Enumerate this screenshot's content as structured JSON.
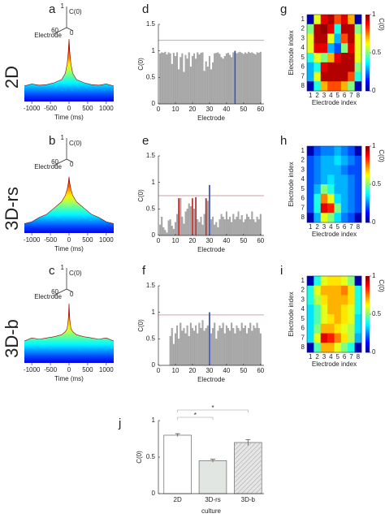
{
  "chart_data": [
    {
      "type": "waterfall",
      "panel": "a",
      "row_label": "2D",
      "inset": {
        "zticks": [
          0,
          1
        ],
        "zlabel": "C(0)",
        "depth_tick": 60,
        "depth_label": "Electrode"
      },
      "x": [
        -1200,
        -1000,
        -800,
        -600,
        -400,
        -200,
        -100,
        -50,
        -20,
        0,
        20,
        50,
        100,
        200,
        400,
        600,
        800,
        1000,
        1200
      ],
      "values": [
        0.25,
        0.28,
        0.26,
        0.27,
        0.3,
        0.35,
        0.45,
        0.6,
        0.8,
        1.0,
        0.8,
        0.6,
        0.45,
        0.35,
        0.3,
        0.27,
        0.26,
        0.28,
        0.25
      ],
      "zlim": [
        0,
        1
      ],
      "xlim": [
        -1200,
        1200
      ],
      "xticks": [
        -1000,
        -500,
        0,
        500,
        1000
      ],
      "xlabel": "Time (ms)"
    },
    {
      "type": "waterfall",
      "panel": "b",
      "row_label": "3D-rs",
      "inset": {
        "zticks": [
          0,
          1
        ],
        "zlabel": "C(0)",
        "depth_tick": 60,
        "depth_label": "Electrode"
      },
      "x": [
        -1200,
        -1000,
        -800,
        -600,
        -400,
        -200,
        -100,
        -50,
        -20,
        0,
        20,
        50,
        100,
        200,
        400,
        600,
        800,
        1000,
        1200
      ],
      "values": [
        0.15,
        0.18,
        0.25,
        0.3,
        0.4,
        0.5,
        0.6,
        0.7,
        0.8,
        0.9,
        0.8,
        0.7,
        0.6,
        0.5,
        0.4,
        0.3,
        0.25,
        0.18,
        0.15
      ],
      "zlim": [
        0,
        1
      ],
      "xlim": [
        -1200,
        1200
      ],
      "xticks": [
        -1000,
        -500,
        0,
        500,
        1000
      ],
      "xlabel": "Time (ms)"
    },
    {
      "type": "waterfall",
      "panel": "c",
      "row_label": "3D-b",
      "inset": {
        "zticks": [
          0,
          1
        ],
        "zlabel": "C(0)",
        "depth_tick": 60,
        "depth_label": "Electrode"
      },
      "x": [
        -1200,
        -1000,
        -800,
        -600,
        -400,
        -200,
        -100,
        -50,
        -20,
        0,
        20,
        50,
        100,
        200,
        400,
        600,
        800,
        1000,
        1200
      ],
      "values": [
        0.35,
        0.4,
        0.38,
        0.4,
        0.42,
        0.45,
        0.5,
        0.55,
        0.7,
        0.95,
        0.7,
        0.55,
        0.5,
        0.45,
        0.42,
        0.4,
        0.38,
        0.4,
        0.35
      ],
      "zlim": [
        0,
        1
      ],
      "xlim": [
        -1200,
        1200
      ],
      "xticks": [
        -1000,
        -500,
        0,
        500,
        1000
      ],
      "xlabel": "Time (ms)"
    },
    {
      "type": "bar",
      "panel": "d",
      "color": "#a8a8a8",
      "x": [
        1,
        2,
        3,
        4,
        5,
        6,
        7,
        8,
        9,
        10,
        11,
        12,
        13,
        14,
        15,
        16,
        17,
        18,
        19,
        20,
        21,
        22,
        23,
        24,
        25,
        26,
        27,
        28,
        29,
        30,
        31,
        32,
        33,
        34,
        35,
        36,
        37,
        38,
        39,
        40,
        41,
        42,
        43,
        44,
        45,
        46,
        47,
        48,
        49,
        50,
        51,
        52,
        53,
        54,
        55,
        56,
        57,
        58,
        59,
        60
      ],
      "values": [
        0.95,
        0.97,
        0.96,
        0.98,
        0.93,
        0.97,
        0.95,
        0.75,
        0.96,
        0.9,
        0.97,
        0.65,
        0.88,
        0.95,
        0.6,
        0.92,
        0.85,
        0.97,
        0.7,
        0.9,
        0.95,
        0.85,
        0.97,
        0.93,
        0.96,
        0.97,
        0.62,
        0.8,
        0.7,
        0.9,
        0.65,
        0.78,
        0.95,
        0.96,
        0.97,
        0.94,
        0.88,
        0.85,
        0.9,
        0.95,
        0.96,
        0.92,
        0.88,
        0.97,
        1.0,
        0.95,
        0.97,
        0.98,
        0.96,
        0.94,
        0.97,
        0.95,
        0.98,
        0.96,
        0.97,
        0.95,
        0.93,
        0.97,
        0.96,
        0.98
      ],
      "highlights": [
        {
          "electrode": 45,
          "color": "#2f4fd6"
        }
      ],
      "threshold": 1.2,
      "threshold_color": "#b0b0b0",
      "xlim": [
        0,
        62
      ],
      "xticks": [
        0,
        10,
        20,
        30,
        40,
        50,
        60
      ],
      "ylim": [
        0,
        1.5
      ],
      "yticks": [
        0,
        0.5,
        1,
        1.5
      ],
      "xlabel": "Electrode",
      "ylabel": "C(0)"
    },
    {
      "type": "bar",
      "panel": "e",
      "color": "#a8a8a8",
      "x": [
        1,
        2,
        3,
        4,
        5,
        6,
        7,
        8,
        9,
        10,
        11,
        12,
        13,
        14,
        15,
        16,
        17,
        18,
        19,
        20,
        21,
        22,
        23,
        24,
        25,
        26,
        27,
        28,
        29,
        30,
        31,
        32,
        33,
        34,
        35,
        36,
        37,
        38,
        39,
        40,
        41,
        42,
        43,
        44,
        45,
        46,
        47,
        48,
        49,
        50,
        51,
        52,
        53,
        54,
        55,
        56,
        57,
        58,
        59,
        60
      ],
      "values": [
        0.2,
        0.35,
        0.15,
        0.1,
        0.05,
        0.28,
        0.3,
        0.18,
        0.12,
        0.25,
        0.4,
        0.7,
        0.7,
        0.35,
        0.22,
        0.45,
        0.5,
        0.6,
        0.55,
        0.7,
        0.5,
        0.72,
        0.3,
        0.25,
        0.35,
        0.2,
        0.4,
        0.7,
        0.65,
        0.95,
        0.3,
        0.35,
        0.2,
        0.25,
        0.15,
        0.3,
        0.4,
        0.35,
        0.3,
        0.45,
        0.3,
        0.35,
        0.25,
        0.4,
        0.3,
        0.35,
        0.45,
        0.3,
        0.38,
        0.25,
        0.3,
        0.4,
        0.35,
        0.3,
        0.45,
        0.3,
        0.25,
        0.35,
        0.3,
        0.4
      ],
      "highlights": [
        {
          "electrode": 12,
          "color": "#d62020"
        },
        {
          "electrode": 20,
          "color": "#d62020"
        },
        {
          "electrode": 22,
          "color": "#d62020"
        },
        {
          "electrode": 28,
          "color": "#d62020"
        },
        {
          "electrode": 30,
          "color": "#2f4fd6"
        }
      ],
      "threshold": 0.75,
      "threshold_color": "#c9a0a0",
      "xlim": [
        0,
        62
      ],
      "xticks": [
        0,
        10,
        20,
        30,
        40,
        50,
        60
      ],
      "ylim": [
        0,
        1.5
      ],
      "yticks": [
        0,
        0.5,
        1,
        1.5
      ],
      "xlabel": "Electrode",
      "ylabel": "C(0)"
    },
    {
      "type": "bar",
      "panel": "f",
      "color": "#a8a8a8",
      "x": [
        1,
        2,
        3,
        4,
        5,
        6,
        7,
        8,
        9,
        10,
        11,
        12,
        13,
        14,
        15,
        16,
        17,
        18,
        19,
        20,
        21,
        22,
        23,
        24,
        25,
        26,
        27,
        28,
        29,
        30,
        31,
        32,
        33,
        34,
        35,
        36,
        37,
        38,
        39,
        40,
        41,
        42,
        43,
        44,
        45,
        46,
        47,
        48,
        49,
        50,
        51,
        52,
        53,
        54,
        55,
        56,
        57,
        58,
        59,
        60
      ],
      "values": [
        null,
        null,
        null,
        null,
        null,
        null,
        0.55,
        0.7,
        0.4,
        0.6,
        0.75,
        0.5,
        0.8,
        0.65,
        0.7,
        0.6,
        0.75,
        0.55,
        0.8,
        0.7,
        0.65,
        0.75,
        0.6,
        0.8,
        0.7,
        0.85,
        0.65,
        0.7,
        0.75,
        1.0,
        0.6,
        0.7,
        0.8,
        0.5,
        0.65,
        0.75,
        0.7,
        0.8,
        0.6,
        0.75,
        0.7,
        0.65,
        0.8,
        0.7,
        0.6,
        0.75,
        0.7,
        0.65,
        0.8,
        0.7,
        0.75,
        0.6,
        0.7,
        0.8,
        0.65,
        0.75,
        0.7,
        0.8,
        0.7,
        0.6
      ],
      "highlights": [
        {
          "electrode": 30,
          "color": "#2f4fd6"
        }
      ],
      "threshold": 0.95,
      "threshold_color": "#d9a3a3",
      "xlim": [
        0,
        62
      ],
      "xticks": [
        0,
        10,
        20,
        30,
        40,
        50,
        60
      ],
      "ylim": [
        0,
        1.5
      ],
      "yticks": [
        0,
        0.5,
        1,
        1.5
      ],
      "xlabel": "Electrode",
      "ylabel": "C(0)"
    },
    {
      "type": "heatmap",
      "panel": "g",
      "z": [
        [
          0.05,
          0.6,
          0.9,
          0.95,
          0.8,
          0.9,
          0.7,
          0.05
        ],
        [
          0.5,
          0.95,
          0.98,
          0.9,
          0.4,
          0.95,
          0.95,
          0.5
        ],
        [
          0.6,
          0.95,
          0.95,
          0.6,
          0.3,
          0.8,
          0.95,
          0.6
        ],
        [
          0.6,
          0.9,
          0.9,
          0.3,
          0.2,
          0.5,
          0.9,
          0.6
        ],
        [
          0.4,
          0.6,
          0.5,
          0.7,
          0.9,
          0.95,
          0.95,
          0.6
        ],
        [
          0.3,
          0.4,
          0.9,
          0.95,
          0.95,
          0.95,
          0.95,
          0.5
        ],
        [
          0.3,
          0.6,
          0.95,
          0.95,
          0.95,
          0.95,
          0.8,
          0.4
        ],
        [
          0.05,
          0.4,
          0.7,
          0.8,
          0.8,
          0.7,
          0.5,
          0.05
        ]
      ],
      "zlim": [
        0,
        1
      ],
      "xticks": [
        1,
        2,
        3,
        4,
        5,
        6,
        7,
        8
      ],
      "yticks": [
        1,
        2,
        3,
        4,
        5,
        6,
        7,
        8
      ],
      "xlabel": "Electrode index",
      "ylabel": "Electrode index",
      "colorbar_ticks": [
        0,
        0.5,
        1
      ],
      "colorbar_label": "C(0)"
    },
    {
      "type": "heatmap",
      "panel": "h",
      "z": [
        [
          0.05,
          0.2,
          0.25,
          0.25,
          0.3,
          0.25,
          0.2,
          0.05
        ],
        [
          0.2,
          0.25,
          0.3,
          0.3,
          0.35,
          0.3,
          0.25,
          0.2
        ],
        [
          0.2,
          0.25,
          0.3,
          0.3,
          0.3,
          0.25,
          0.2,
          0.2
        ],
        [
          0.2,
          0.25,
          0.3,
          0.35,
          0.3,
          0.3,
          0.25,
          0.2
        ],
        [
          0.2,
          0.3,
          0.5,
          0.4,
          0.3,
          0.3,
          0.25,
          0.2
        ],
        [
          0.2,
          0.4,
          0.75,
          0.6,
          0.35,
          0.3,
          0.25,
          0.2
        ],
        [
          0.2,
          0.4,
          0.9,
          0.85,
          0.5,
          0.3,
          0.25,
          0.2
        ],
        [
          0.05,
          0.3,
          0.6,
          0.5,
          0.35,
          0.25,
          0.2,
          0.05
        ]
      ],
      "zlim": [
        0,
        1
      ],
      "xticks": [
        1,
        2,
        3,
        4,
        5,
        6,
        7,
        8
      ],
      "yticks": [
        1,
        2,
        3,
        4,
        5,
        6,
        7,
        8
      ],
      "xlabel": "Electrode index",
      "ylabel": "Electrode index",
      "colorbar_ticks": [
        0,
        0.5,
        1
      ],
      "colorbar_label": "C(0)"
    },
    {
      "type": "heatmap",
      "panel": "i",
      "z": [
        [
          0.05,
          0.4,
          0.6,
          0.65,
          0.65,
          0.6,
          0.5,
          0.05
        ],
        [
          0.4,
          0.6,
          0.7,
          0.7,
          0.7,
          0.75,
          0.65,
          0.4
        ],
        [
          0.4,
          0.55,
          0.65,
          0.7,
          0.7,
          0.7,
          0.65,
          0.4
        ],
        [
          0.35,
          0.45,
          0.6,
          0.7,
          0.7,
          0.65,
          0.6,
          0.4
        ],
        [
          0.35,
          0.45,
          0.6,
          0.65,
          0.7,
          0.65,
          0.6,
          0.35
        ],
        [
          0.35,
          0.5,
          0.7,
          0.7,
          0.65,
          0.6,
          0.55,
          0.35
        ],
        [
          0.35,
          0.6,
          0.9,
          0.85,
          0.75,
          0.65,
          0.55,
          0.3
        ],
        [
          0.05,
          0.45,
          0.7,
          0.7,
          0.6,
          0.5,
          0.4,
          0.05
        ]
      ],
      "zlim": [
        0,
        1
      ],
      "xticks": [
        1,
        2,
        3,
        4,
        5,
        6,
        7,
        8
      ],
      "yticks": [
        1,
        2,
        3,
        4,
        5,
        6,
        7,
        8
      ],
      "xlabel": "Electrode index",
      "ylabel": "Electrode index",
      "colorbar_ticks": [
        0,
        0.5,
        1
      ],
      "colorbar_label": "C(0)"
    },
    {
      "type": "errorbar",
      "panel": "j",
      "categories": [
        "2D",
        "3D-rs",
        "3D-b"
      ],
      "values": [
        0.8,
        0.45,
        0.7
      ],
      "errors": [
        0.02,
        0.02,
        0.04
      ],
      "bar_fills": [
        "#ffffff",
        "#e2e6e2",
        "#e6e6e6"
      ],
      "hatch": [
        false,
        false,
        true
      ],
      "brackets": [
        {
          "from": 0,
          "to": 2,
          "label": "*"
        },
        {
          "from": 0,
          "to": 1,
          "label": "*"
        }
      ],
      "ylim": [
        0,
        1
      ],
      "yticks": [
        0,
        0.5,
        1
      ],
      "xlabel": "culture",
      "ylabel": "C(0)"
    }
  ]
}
